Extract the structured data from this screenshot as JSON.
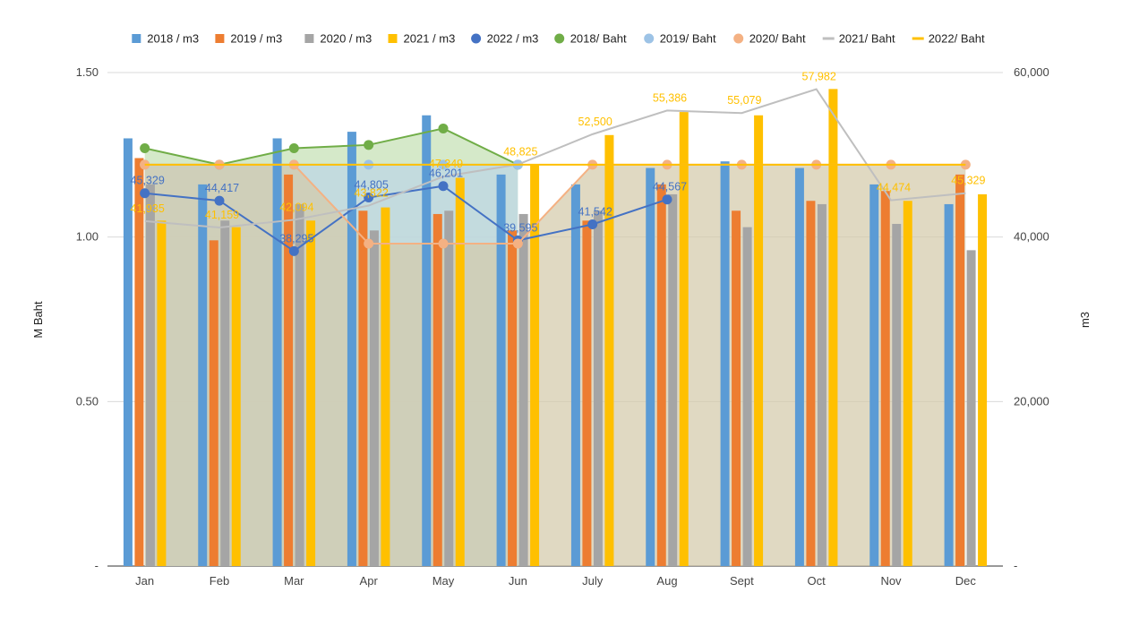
{
  "chart_data": {
    "type": "bar",
    "categories": [
      "Jan",
      "Feb",
      "Mar",
      "Apr",
      "May",
      "Jun",
      "July",
      "Aug",
      "Sept",
      "Oct",
      "Nov",
      "Dec"
    ],
    "left_axis": {
      "title": "M Baht",
      "ticks": [
        "-",
        "0.50",
        "1.00",
        "1.50"
      ],
      "tick_values": [
        0,
        0.5,
        1.0,
        1.5
      ],
      "range": [
        0,
        1.5
      ]
    },
    "right_axis": {
      "title": "m3",
      "ticks": [
        "-",
        "20,000",
        "40,000",
        "60,000"
      ],
      "tick_values": [
        0,
        20000,
        40000,
        60000
      ],
      "range": [
        0,
        60000
      ]
    },
    "grid": true,
    "legend_position": "top",
    "bar_series": [
      {
        "name": "2018 / m3",
        "color": "#5b9bd5",
        "values": [
          1.3,
          1.16,
          1.3,
          1.32,
          1.37,
          1.19,
          1.16,
          1.21,
          1.23,
          1.21,
          1.16,
          1.1
        ]
      },
      {
        "name": "2019 /  m3",
        "color": "#ed7d31",
        "values": [
          1.24,
          0.99,
          1.19,
          1.08,
          1.07,
          1.02,
          1.05,
          1.16,
          1.08,
          1.11,
          1.14,
          1.19
        ]
      },
      {
        "name": "2020 / m3",
        "color": "#a5a5a5",
        "values": [
          1.16,
          1.05,
          1.1,
          1.02,
          1.08,
          1.07,
          1.08,
          1.13,
          1.03,
          1.1,
          1.04,
          0.96
        ]
      },
      {
        "name": "2021 / m3",
        "color": "#ffc000",
        "values": [
          1.05,
          1.03,
          1.05,
          1.09,
          1.18,
          1.22,
          1.31,
          1.38,
          1.37,
          1.45,
          1.11,
          1.13
        ]
      }
    ],
    "line_series": [
      {
        "name": "2022 / m3",
        "axis": "right",
        "color": "#4472c4",
        "marker": true,
        "show_labels": true,
        "label_color": "#4472c4",
        "values": [
          45329,
          44417,
          38295,
          44805,
          46201,
          39595,
          41542,
          44567,
          null,
          null,
          null,
          null
        ],
        "labels": [
          "45,329",
          "44,417",
          "38,295",
          "44,805",
          "46,201",
          "39,595",
          "41,542",
          "44,567",
          "",
          "",
          "",
          ""
        ]
      },
      {
        "name": "2018/ Baht",
        "axis": "left",
        "color": "#70ad47",
        "marker": true,
        "area": true,
        "area_color": "#c5e0b4",
        "values": [
          1.27,
          1.22,
          1.27,
          1.28,
          1.33,
          1.22,
          null,
          null,
          null,
          null,
          null,
          null
        ]
      },
      {
        "name": "2019/ Baht",
        "axis": "left",
        "color": "#9dc3e6",
        "marker": true,
        "area": true,
        "area_color": "#bcd5e6",
        "values": [
          1.22,
          1.22,
          1.22,
          1.22,
          1.22,
          1.22,
          null,
          null,
          null,
          null,
          null,
          null
        ]
      },
      {
        "name": "2020/ Baht",
        "axis": "left",
        "color": "#f4b183",
        "marker": true,
        "area": true,
        "area_color": "#d4caaa",
        "values": [
          1.22,
          1.22,
          1.22,
          0.98,
          0.98,
          0.98,
          1.22,
          1.22,
          1.22,
          1.22,
          1.22,
          1.22
        ]
      },
      {
        "name": "2021/ Baht",
        "axis": "right",
        "color": "#bfbfbf",
        "marker": false,
        "show_labels": true,
        "label_color": "#ffc000",
        "values": [
          41935,
          41159,
          42094,
          43822,
          47349,
          48825,
          52500,
          55386,
          55079,
          57982,
          44474,
          45329
        ],
        "labels": [
          "41,935",
          "41,159",
          "42,094",
          "43,822",
          "47,349",
          "48,825",
          "52,500",
          "55,386",
          "55,079",
          "57,982",
          "44,474",
          "45,329"
        ]
      },
      {
        "name": "2022/ Baht",
        "axis": "left",
        "color": "#ffc000",
        "marker": false,
        "values": [
          1.22,
          1.22,
          1.22,
          1.22,
          1.22,
          1.22,
          1.22,
          1.22,
          1.22,
          1.22,
          1.22,
          1.22
        ]
      }
    ]
  }
}
